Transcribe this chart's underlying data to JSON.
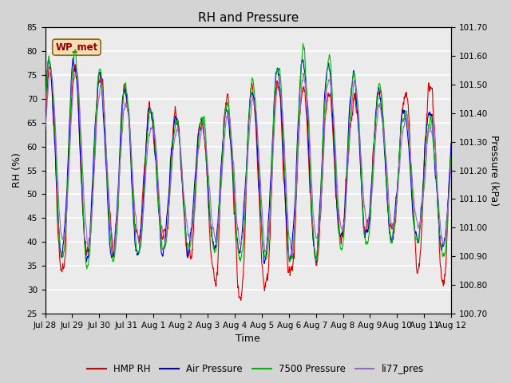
{
  "title": "RH and Pressure",
  "xlabel": "Time",
  "ylabel_left": "RH (%)",
  "ylabel_right": "Pressure (kPa)",
  "ylim_left": [
    25,
    85
  ],
  "ylim_right": [
    100.7,
    101.7
  ],
  "yticks_left": [
    25,
    30,
    35,
    40,
    45,
    50,
    55,
    60,
    65,
    70,
    75,
    80,
    85
  ],
  "yticks_right": [
    100.7,
    100.8,
    100.9,
    101.0,
    101.1,
    101.2,
    101.3,
    101.4,
    101.5,
    101.6,
    101.7
  ],
  "xtick_labels": [
    "Jul 28",
    "Jul 29",
    "Jul 30",
    "Jul 31",
    "Aug 1",
    "Aug 2",
    "Aug 3",
    "Aug 4",
    "Aug 5",
    "Aug 6",
    "Aug 7",
    "Aug 8",
    "Aug 9",
    "Aug 10",
    "Aug 11",
    "Aug 12"
  ],
  "colors": {
    "HMP_RH": "#DD0000",
    "Air_Pressure": "#0000CC",
    "7500_Pressure": "#00BB00",
    "li77_pres": "#9966CC"
  },
  "legend_labels": [
    "HMP RH",
    "Air Pressure",
    "7500 Pressure",
    "li77_pres"
  ],
  "legend_colors": [
    "#DD0000",
    "#0000CC",
    "#00BB00",
    "#9966CC"
  ],
  "annotation_text": "WP_met",
  "annotation_color": "#8B0000",
  "annotation_box_color": "#F5DEB3",
  "annotation_edge_color": "#8B6914",
  "fig_bg_color": "#D4D4D4",
  "plot_bg_color": "#EBEBEB",
  "grid_color": "#FFFFFF",
  "title_fontsize": 11,
  "axis_label_fontsize": 9,
  "tick_fontsize": 7.5,
  "n_points": 1200,
  "seed": 42
}
